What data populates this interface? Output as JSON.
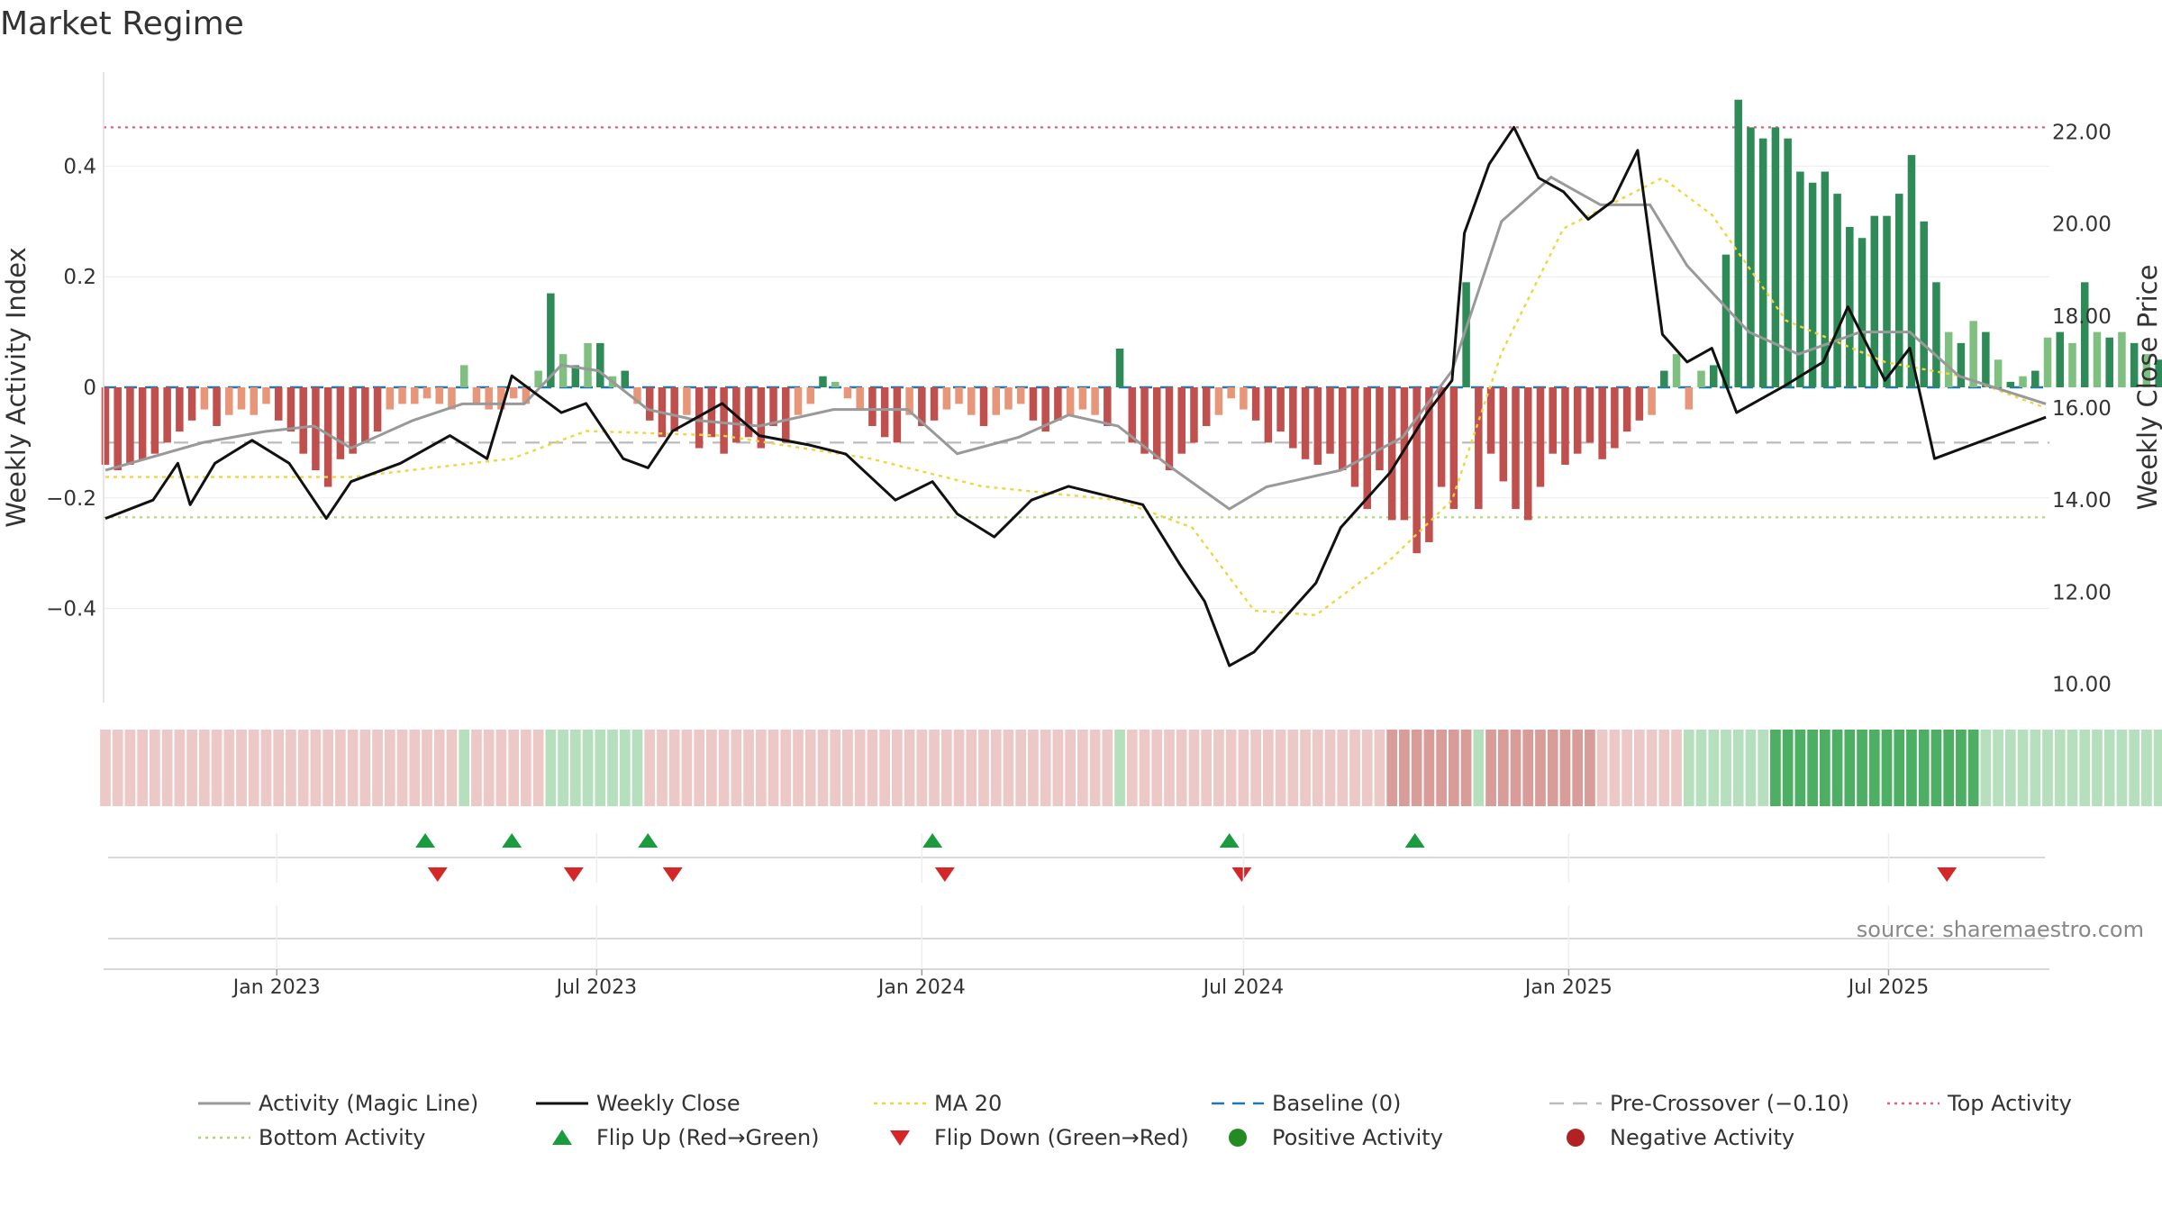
{
  "title": "Market Regime",
  "source": "source: sharemaestro.com",
  "colors": {
    "green_strong": "#2e8b57",
    "green_light": "#7fbf7f",
    "red_strong": "#c0504d",
    "red_light": "#e8967a",
    "activity_line": "#999999",
    "close_line": "#111111",
    "ma20": "#f0d53c",
    "baseline": "#1f77b4",
    "precross": "#bbbbbb",
    "top_line": "#e0607e",
    "bottom_line": "#a8d86e",
    "flip_up": "#1a9c3e",
    "flip_down": "#d62728",
    "positive": "#228b22",
    "negative": "#b22222"
  },
  "chart_data": {
    "type": "bar",
    "title": "Market Regime",
    "ylabel_left": "Weekly Activity Index",
    "ylabel_right": "Weekly Close Price",
    "y_left_ticks": [
      "0.4",
      "0.2",
      "0",
      "−0.2",
      "−0.4"
    ],
    "y_left_tick_values": [
      0.4,
      0.2,
      0,
      -0.2,
      -0.4
    ],
    "y_left_range": [
      -0.57,
      0.57
    ],
    "y_right_ticks": [
      "22.00",
      "20.00",
      "18.00",
      "16.00",
      "14.00",
      "12.00",
      "10.00"
    ],
    "y_right_tick_values": [
      22,
      20,
      18,
      16,
      14,
      12,
      10
    ],
    "y_right_range": [
      9.6,
      23.3
    ],
    "x_ticks": [
      "Jan 2023",
      "Jul 2023",
      "Jan 2024",
      "Jul 2024",
      "Jan 2025",
      "Jul 2025"
    ],
    "x_tick_dates": [
      "2023-01-01",
      "2023-07-01",
      "2024-01-01",
      "2024-07-01",
      "2025-01-01",
      "2025-07-01"
    ],
    "x_range": [
      "2022-09-25",
      "2025-09-30"
    ],
    "reference_lines": {
      "baseline": 0,
      "pre_crossover": -0.1,
      "top_activity": 0.47,
      "bottom_activity": -0.235
    },
    "series": [
      {
        "name": "Weekly Activity Index",
        "kind": "bar",
        "start_date": "2022-09-26",
        "interval_days": 7,
        "values": [
          -0.14,
          -0.15,
          -0.14,
          -0.13,
          -0.12,
          -0.1,
          -0.08,
          -0.06,
          -0.04,
          -0.07,
          -0.05,
          -0.04,
          -0.05,
          -0.03,
          -0.06,
          -0.08,
          -0.12,
          -0.15,
          -0.18,
          -0.13,
          -0.12,
          -0.1,
          -0.08,
          -0.04,
          -0.03,
          -0.03,
          -0.02,
          -0.03,
          -0.04,
          0.04,
          -0.03,
          -0.04,
          -0.04,
          -0.02,
          -0.03,
          0.03,
          0.17,
          0.06,
          0.04,
          0.08,
          0.08,
          0.02,
          0.03,
          -0.03,
          -0.06,
          -0.09,
          -0.08,
          -0.05,
          -0.11,
          -0.09,
          -0.12,
          -0.1,
          -0.09,
          -0.11,
          -0.07,
          -0.1,
          -0.05,
          -0.03,
          0.02,
          0.01,
          -0.02,
          -0.04,
          -0.07,
          -0.09,
          -0.1,
          -0.05,
          -0.07,
          -0.06,
          -0.04,
          -0.03,
          -0.05,
          -0.07,
          -0.05,
          -0.04,
          -0.03,
          -0.06,
          -0.08,
          -0.06,
          -0.05,
          -0.04,
          -0.05,
          -0.07,
          0.07,
          -0.1,
          -0.12,
          -0.13,
          -0.15,
          -0.12,
          -0.1,
          -0.07,
          -0.05,
          -0.02,
          -0.04,
          -0.06,
          -0.1,
          -0.08,
          -0.11,
          -0.13,
          -0.14,
          -0.12,
          -0.15,
          -0.18,
          -0.22,
          -0.15,
          -0.24,
          -0.24,
          -0.3,
          -0.28,
          -0.18,
          -0.22,
          0.19,
          -0.22,
          -0.12,
          -0.17,
          -0.22,
          -0.24,
          -0.18,
          -0.12,
          -0.14,
          -0.12,
          -0.1,
          -0.13,
          -0.11,
          -0.08,
          -0.06,
          -0.05,
          0.03,
          0.06,
          -0.04,
          0.03,
          0.04,
          0.24,
          0.52,
          0.47,
          0.45,
          0.47,
          0.45,
          0.39,
          0.37,
          0.39,
          0.35,
          0.29,
          0.27,
          0.31,
          0.31,
          0.35,
          0.42,
          0.3,
          0.19,
          0.1,
          0.08,
          0.12,
          0.1,
          0.05,
          0.01,
          0.02,
          0.03,
          0.09,
          0.1,
          0.08,
          0.19,
          0.1,
          0.09,
          0.1,
          0.08,
          0.06,
          0.05,
          0.12,
          0.1,
          0.09,
          0.14,
          -0.04,
          -0.11,
          -0.08,
          -0.06,
          -0.05,
          -0.04,
          -0.06,
          -0.03,
          -0.04
        ]
      },
      {
        "name": "Activity (Magic Line)",
        "kind": "line",
        "points": [
          [
            "2022-09-26",
            -0.15
          ],
          [
            "2022-11-20",
            -0.1
          ],
          [
            "2022-12-25",
            -0.08
          ],
          [
            "2023-01-22",
            -0.07
          ],
          [
            "2023-02-12",
            -0.11
          ],
          [
            "2023-03-19",
            -0.06
          ],
          [
            "2023-04-16",
            -0.03
          ],
          [
            "2023-05-21",
            -0.03
          ],
          [
            "2023-06-11",
            0.04
          ],
          [
            "2023-07-02",
            0.03
          ],
          [
            "2023-07-30",
            -0.04
          ],
          [
            "2023-08-27",
            -0.06
          ],
          [
            "2023-10-01",
            -0.07
          ],
          [
            "2023-11-12",
            -0.04
          ],
          [
            "2023-12-24",
            -0.04
          ],
          [
            "2024-01-21",
            -0.12
          ],
          [
            "2024-02-25",
            -0.09
          ],
          [
            "2024-03-24",
            -0.05
          ],
          [
            "2024-04-21",
            -0.07
          ],
          [
            "2024-05-19",
            -0.14
          ],
          [
            "2024-06-23",
            -0.22
          ],
          [
            "2024-07-14",
            -0.18
          ],
          [
            "2024-08-25",
            -0.15
          ],
          [
            "2024-09-29",
            -0.09
          ],
          [
            "2024-10-27",
            0.03
          ],
          [
            "2024-11-24",
            0.3
          ],
          [
            "2024-12-22",
            0.38
          ],
          [
            "2025-01-19",
            0.33
          ],
          [
            "2025-02-16",
            0.33
          ],
          [
            "2025-03-09",
            0.22
          ],
          [
            "2025-04-13",
            0.1
          ],
          [
            "2025-05-11",
            0.06
          ],
          [
            "2025-06-15",
            0.1
          ],
          [
            "2025-07-13",
            0.1
          ],
          [
            "2025-08-10",
            0.02
          ],
          [
            "2025-09-28",
            -0.03
          ]
        ]
      },
      {
        "name": "Weekly Close",
        "kind": "line",
        "points": [
          [
            "2022-09-26",
            13.6
          ],
          [
            "2022-10-23",
            14.0
          ],
          [
            "2022-11-06",
            14.8
          ],
          [
            "2022-11-13",
            13.9
          ],
          [
            "2022-11-27",
            14.8
          ],
          [
            "2022-12-18",
            15.3
          ],
          [
            "2023-01-08",
            14.8
          ],
          [
            "2023-01-29",
            13.6
          ],
          [
            "2023-02-12",
            14.4
          ],
          [
            "2023-03-12",
            14.8
          ],
          [
            "2023-04-09",
            15.4
          ],
          [
            "2023-04-30",
            14.9
          ],
          [
            "2023-05-14",
            16.7
          ],
          [
            "2023-05-28",
            16.3
          ],
          [
            "2023-06-11",
            15.9
          ],
          [
            "2023-06-25",
            16.1
          ],
          [
            "2023-07-16",
            14.9
          ],
          [
            "2023-07-30",
            14.7
          ],
          [
            "2023-08-13",
            15.5
          ],
          [
            "2023-09-10",
            16.1
          ],
          [
            "2023-10-01",
            15.4
          ],
          [
            "2023-10-29",
            15.2
          ],
          [
            "2023-11-19",
            15.0
          ],
          [
            "2023-12-17",
            14.0
          ],
          [
            "2024-01-07",
            14.4
          ],
          [
            "2024-01-21",
            13.7
          ],
          [
            "2024-02-11",
            13.2
          ],
          [
            "2024-03-03",
            14.0
          ],
          [
            "2024-03-24",
            14.3
          ],
          [
            "2024-04-14",
            14.1
          ],
          [
            "2024-05-05",
            13.9
          ],
          [
            "2024-05-26",
            12.6
          ],
          [
            "2024-06-09",
            11.8
          ],
          [
            "2024-06-23",
            10.4
          ],
          [
            "2024-07-07",
            10.7
          ],
          [
            "2024-07-21",
            11.3
          ],
          [
            "2024-08-11",
            12.2
          ],
          [
            "2024-08-25",
            13.4
          ],
          [
            "2024-09-22",
            14.6
          ],
          [
            "2024-10-13",
            15.9
          ],
          [
            "2024-10-27",
            16.6
          ],
          [
            "2024-11-03",
            19.8
          ],
          [
            "2024-11-17",
            21.3
          ],
          [
            "2024-12-01",
            22.1
          ],
          [
            "2024-12-15",
            21.0
          ],
          [
            "2024-12-29",
            20.7
          ],
          [
            "2025-01-12",
            20.1
          ],
          [
            "2025-01-26",
            20.5
          ],
          [
            "2025-02-09",
            21.6
          ],
          [
            "2025-02-23",
            17.6
          ],
          [
            "2025-03-09",
            17.0
          ],
          [
            "2025-03-23",
            17.3
          ],
          [
            "2025-04-06",
            15.9
          ],
          [
            "2025-05-04",
            16.5
          ],
          [
            "2025-05-25",
            17.0
          ],
          [
            "2025-06-08",
            18.2
          ],
          [
            "2025-06-29",
            16.6
          ],
          [
            "2025-07-13",
            17.3
          ],
          [
            "2025-07-27",
            14.9
          ],
          [
            "2025-08-31",
            15.4
          ],
          [
            "2025-09-28",
            15.8
          ]
        ]
      },
      {
        "name": "MA 20",
        "kind": "line",
        "points": [
          [
            "2022-09-26",
            14.5
          ],
          [
            "2023-02-12",
            14.5
          ],
          [
            "2023-05-14",
            14.9
          ],
          [
            "2023-06-25",
            15.5
          ],
          [
            "2023-09-10",
            15.4
          ],
          [
            "2023-12-03",
            14.9
          ],
          [
            "2024-02-04",
            14.3
          ],
          [
            "2024-04-21",
            14.0
          ],
          [
            "2024-06-02",
            13.4
          ],
          [
            "2024-07-07",
            11.6
          ],
          [
            "2024-08-11",
            11.5
          ],
          [
            "2024-09-22",
            12.7
          ],
          [
            "2024-10-27",
            14.0
          ],
          [
            "2024-11-24",
            17.2
          ],
          [
            "2024-12-29",
            19.9
          ],
          [
            "2025-02-23",
            21.0
          ],
          [
            "2025-03-23",
            20.2
          ],
          [
            "2025-05-04",
            17.9
          ],
          [
            "2025-06-29",
            17.0
          ],
          [
            "2025-08-10",
            16.7
          ],
          [
            "2025-09-28",
            16.0
          ]
        ]
      }
    ],
    "regime_strip": {
      "start_date": "2022-09-26",
      "interval_days": 7,
      "levels": [
        -1,
        -1,
        -1,
        -1,
        -1,
        -1,
        -1,
        -1,
        -1,
        -1,
        -1,
        -1,
        -1,
        -1,
        -1,
        -1,
        -1,
        -1,
        -1,
        -1,
        -1,
        -1,
        -1,
        -1,
        -1,
        -1,
        -1,
        -1,
        -1,
        1,
        -1,
        -1,
        -1,
        -1,
        -1,
        -1,
        1,
        1,
        1,
        1,
        1,
        1,
        1,
        1,
        -1,
        -1,
        -1,
        -1,
        -1,
        -1,
        -1,
        -1,
        -1,
        -1,
        -1,
        -1,
        -1,
        -1,
        -1,
        -1,
        -1,
        -1,
        -1,
        -1,
        -1,
        -1,
        -1,
        -1,
        -1,
        -1,
        -1,
        -1,
        -1,
        -1,
        -1,
        -1,
        -1,
        -1,
        -1,
        -1,
        -1,
        -1,
        1,
        -1,
        -1,
        -1,
        -1,
        -1,
        -1,
        -1,
        -1,
        -1,
        -1,
        -1,
        -1,
        -1,
        -1,
        -1,
        -1,
        -1,
        -1,
        -1,
        -1,
        -1,
        -2,
        -2,
        -2,
        -2,
        -2,
        -2,
        -2,
        1,
        -2,
        -2,
        -2,
        -2,
        -2,
        -2,
        -2,
        -2,
        -2,
        -1,
        -1,
        -1,
        -1,
        -1,
        -1,
        -1,
        1,
        1,
        1,
        1,
        1,
        1,
        1,
        2,
        2,
        2,
        2,
        2,
        2,
        2,
        2,
        2,
        2,
        2,
        2,
        2,
        2,
        2,
        2,
        2,
        1,
        1,
        1,
        1,
        1,
        1,
        1,
        1,
        1,
        1,
        1,
        1,
        1,
        1,
        1,
        1,
        1,
        1,
        1,
        1,
        1,
        1,
        1,
        1,
        -2,
        -1,
        -1,
        -1,
        -1,
        -1,
        -1,
        -1,
        -1
      ]
    },
    "flip_up_dates": [
      "2023-03-26",
      "2023-05-14",
      "2023-07-30",
      "2024-01-07",
      "2024-06-23",
      "2024-10-06"
    ],
    "flip_down_dates": [
      "2023-04-02",
      "2023-06-18",
      "2023-08-13",
      "2024-01-14",
      "2024-06-30",
      "2025-08-03"
    ],
    "legend": [
      {
        "label": "Activity (Magic Line)",
        "symbol": "line-solid-gray"
      },
      {
        "label": "Weekly Close",
        "symbol": "line-solid-black"
      },
      {
        "label": "MA 20",
        "symbol": "line-dotted-yellow"
      },
      {
        "label": "Baseline (0)",
        "symbol": "line-dashed-blue"
      },
      {
        "label": "Pre-Crossover (−0.10)",
        "symbol": "line-dashed-gray"
      },
      {
        "label": "Top Activity",
        "symbol": "line-dotted-pink"
      },
      {
        "label": "Bottom Activity",
        "symbol": "line-dotted-green"
      },
      {
        "label": "Flip Up (Red→Green)",
        "symbol": "triangle-up-green"
      },
      {
        "label": "Flip Down (Green→Red)",
        "symbol": "triangle-down-red"
      },
      {
        "label": "Positive Activity",
        "symbol": "circle-green"
      },
      {
        "label": "Negative Activity",
        "symbol": "circle-red"
      }
    ],
    "grid": true,
    "legend_position": "bottom"
  }
}
